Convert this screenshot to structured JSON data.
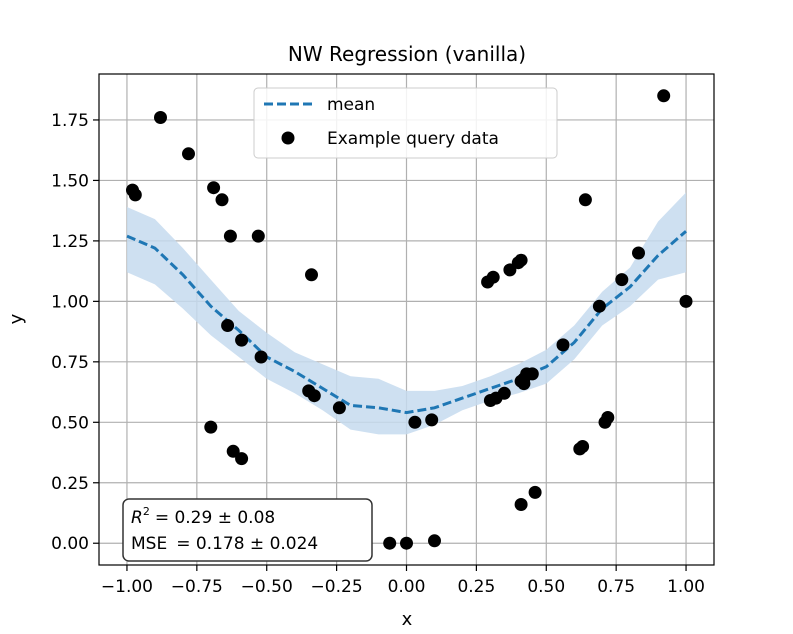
{
  "chart_data": {
    "type": "scatter",
    "title": "NW Regression (vanilla)",
    "xlabel": "x",
    "ylabel": "y",
    "xlim": [
      -1.1,
      1.1
    ],
    "ylim": [
      -0.09,
      1.94
    ],
    "grid": true,
    "xticks": [
      -1.0,
      -0.75,
      -0.5,
      -0.25,
      0.0,
      0.25,
      0.5,
      0.75,
      1.0
    ],
    "xtick_labels": [
      "−1.00",
      "−0.75",
      "−0.50",
      "−0.25",
      "0.00",
      "0.25",
      "0.50",
      "0.75",
      "1.00"
    ],
    "yticks": [
      0.0,
      0.25,
      0.5,
      0.75,
      1.0,
      1.25,
      1.5,
      1.75
    ],
    "ytick_labels": [
      "0.00",
      "0.25",
      "0.50",
      "0.75",
      "1.00",
      "1.25",
      "1.50",
      "1.75"
    ],
    "legend": {
      "position": "upper-center",
      "entries": [
        {
          "label": "mean",
          "style": "dashed-line",
          "color": "#1f77b4"
        },
        {
          "label": "Example query data",
          "style": "marker",
          "color": "#000000"
        }
      ]
    },
    "stats": {
      "r2_label": "R",
      "r2_value": "= 0.29 ± 0.08",
      "mse_label": "MSE",
      "mse_value": "= 0.178 ± 0.024",
      "position": "bottom-left"
    },
    "colors": {
      "mean": "#1f77b4",
      "band": "#c6dbef",
      "points": "#000000",
      "grid": "#b0b0b0"
    },
    "series": [
      {
        "name": "mean",
        "type": "line",
        "x": [
          -1.0,
          -0.9,
          -0.8,
          -0.7,
          -0.6,
          -0.5,
          -0.4,
          -0.3,
          -0.2,
          -0.1,
          0.0,
          0.1,
          0.2,
          0.3,
          0.4,
          0.5,
          0.6,
          0.7,
          0.8,
          0.9,
          1.0
        ],
        "y": [
          1.27,
          1.22,
          1.11,
          0.98,
          0.88,
          0.77,
          0.71,
          0.64,
          0.57,
          0.56,
          0.54,
          0.56,
          0.6,
          0.64,
          0.68,
          0.73,
          0.83,
          0.97,
          1.06,
          1.19,
          1.29
        ],
        "lower": [
          1.12,
          1.07,
          0.97,
          0.86,
          0.77,
          0.68,
          0.62,
          0.55,
          0.47,
          0.45,
          0.45,
          0.49,
          0.55,
          0.59,
          0.62,
          0.66,
          0.76,
          0.9,
          0.98,
          1.09,
          1.12
        ],
        "upper": [
          1.39,
          1.34,
          1.22,
          1.09,
          0.96,
          0.87,
          0.79,
          0.74,
          0.69,
          0.68,
          0.63,
          0.63,
          0.65,
          0.69,
          0.74,
          0.8,
          0.9,
          1.04,
          1.14,
          1.33,
          1.45
        ]
      },
      {
        "name": "Example query data",
        "type": "scatter",
        "x": [
          -0.98,
          -0.97,
          -0.88,
          -0.78,
          -0.69,
          -0.66,
          -0.63,
          -0.53,
          -0.64,
          -0.59,
          -0.52,
          -0.35,
          -0.34,
          -0.33,
          -0.24,
          -0.7,
          -0.62,
          -0.59,
          -0.06,
          0.0,
          0.03,
          0.09,
          0.1,
          0.29,
          0.31,
          0.35,
          0.37,
          0.4,
          0.41,
          0.42,
          0.32,
          0.3,
          0.41,
          0.42,
          0.43,
          0.45,
          0.41,
          0.46,
          0.56,
          0.62,
          0.63,
          0.64,
          0.69,
          0.71,
          0.72,
          0.77,
          0.83,
          0.92,
          1.0
        ],
        "y": [
          1.46,
          1.44,
          1.76,
          1.61,
          1.47,
          1.42,
          1.27,
          1.27,
          0.9,
          0.84,
          0.77,
          0.63,
          1.11,
          0.61,
          0.56,
          0.48,
          0.38,
          0.35,
          0.0,
          0.0,
          0.5,
          0.51,
          0.01,
          1.08,
          1.1,
          0.62,
          1.13,
          1.16,
          1.17,
          0.66,
          0.6,
          0.59,
          0.67,
          0.68,
          0.7,
          0.7,
          0.16,
          0.21,
          0.82,
          0.39,
          0.4,
          1.42,
          0.98,
          0.5,
          0.52,
          1.09,
          1.2,
          1.85,
          1.0
        ]
      }
    ]
  }
}
